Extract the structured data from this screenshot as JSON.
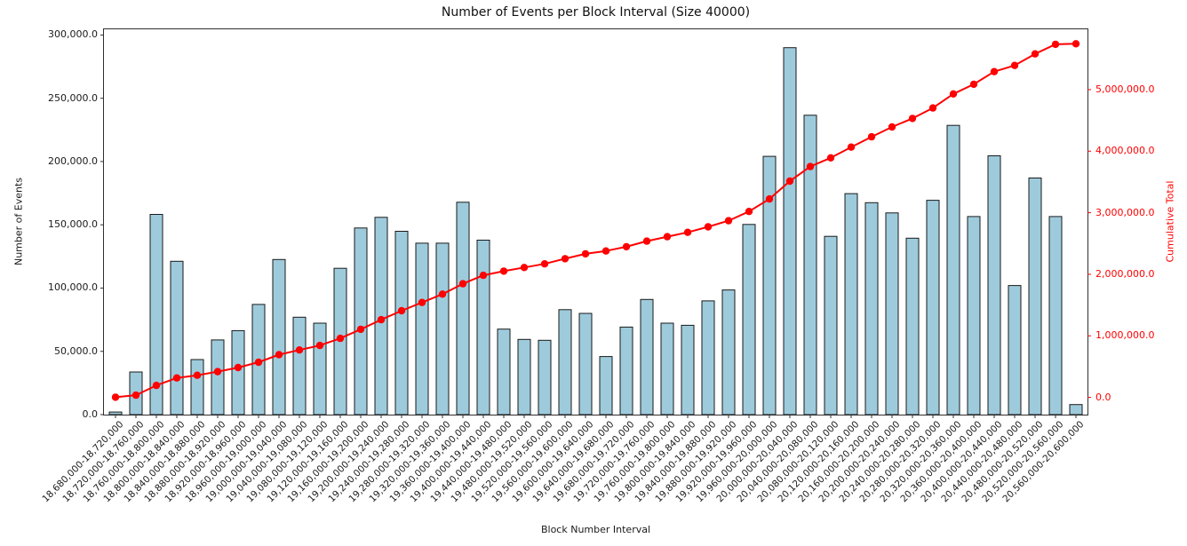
{
  "title": "Number of Events per Block Interval (Size 40000)",
  "x_axis": {
    "label": "Block Number Interval",
    "tick_rotation_deg": 45
  },
  "left_axis": {
    "label": "Number of Events",
    "color": "#1a1a1a",
    "ticks": [
      0,
      50000,
      100000,
      150000,
      200000,
      250000,
      300000
    ],
    "min": 0,
    "max": 304500
  },
  "right_axis": {
    "label": "Cumulative Total",
    "color": "#ff0000",
    "ticks": [
      0,
      1000000,
      2000000,
      3000000,
      4000000,
      5000000
    ],
    "min": -280000,
    "max": 5980000
  },
  "chart_data": {
    "type": "bar",
    "title": "Number of Events per Block Interval (Size 40000)",
    "xlabel": "Block Number Interval",
    "ylabel": "Number of Events",
    "ylabel_right": "Cumulative Total",
    "ylim_left": [
      0,
      304500
    ],
    "ylim_right": [
      -280000,
      5980000
    ],
    "grid": false,
    "legend": "none",
    "categories": [
      "18,680,000-18,720,000",
      "18,720,000-18,760,000",
      "18,760,000-18,800,000",
      "18,800,000-18,840,000",
      "18,840,000-18,880,000",
      "18,880,000-18,920,000",
      "18,920,000-18,960,000",
      "18,960,000-19,000,000",
      "19,000,000-19,040,000",
      "19,040,000-19,080,000",
      "19,080,000-19,120,000",
      "19,120,000-19,160,000",
      "19,160,000-19,200,000",
      "19,200,000-19,240,000",
      "19,240,000-19,280,000",
      "19,280,000-19,320,000",
      "19,320,000-19,360,000",
      "19,360,000-19,400,000",
      "19,400,000-19,440,000",
      "19,440,000-19,480,000",
      "19,480,000-19,520,000",
      "19,520,000-19,560,000",
      "19,560,000-19,600,000",
      "19,600,000-19,640,000",
      "19,640,000-19,680,000",
      "19,680,000-19,720,000",
      "19,720,000-19,760,000",
      "19,760,000-19,800,000",
      "19,800,000-19,840,000",
      "19,840,000-19,880,000",
      "19,880,000-19,920,000",
      "19,920,000-19,960,000",
      "19,960,000-20,000,000",
      "20,000,000-20,040,000",
      "20,040,000-20,080,000",
      "20,080,000-20,120,000",
      "20,120,000-20,160,000",
      "20,160,000-20,200,000",
      "20,200,000-20,240,000",
      "20,240,000-20,280,000",
      "20,280,000-20,320,000",
      "20,320,000-20,360,000",
      "20,360,000-20,400,000",
      "20,400,000-20,440,000",
      "20,440,000-20,480,000",
      "20,480,000-20,520,000",
      "20,520,000-20,560,000",
      "20,560,000-20,600,000"
    ],
    "series": [
      {
        "name": "Number of Events",
        "type": "bar",
        "axis": "left",
        "fill_color": "#9ecbdc",
        "edge_color": "#1a1a1a",
        "values": [
          2000,
          33700,
          158200,
          121200,
          43500,
          59000,
          66400,
          87100,
          122600,
          77000,
          72300,
          115600,
          147500,
          155900,
          144900,
          135500,
          135500,
          167800,
          137900,
          67600,
          59400,
          58700,
          82900,
          80000,
          45900,
          69200,
          91000,
          72300,
          70600,
          89900,
          98500,
          150300,
          204100,
          290000,
          236600,
          140900,
          174600,
          167500,
          159400,
          139400,
          169400,
          228600,
          156500,
          204500,
          102000,
          187000,
          156500,
          7900
        ]
      },
      {
        "name": "Cumulative Total",
        "type": "line",
        "axis": "right",
        "color": "#ff0000",
        "marker": "circle",
        "values": [
          2000,
          35700,
          193900,
          315100,
          358600,
          417600,
          484000,
          571100,
          693700,
          770700,
          843000,
          958600,
          1106100,
          1262000,
          1406900,
          1542400,
          1677900,
          1845700,
          1983600,
          2051200,
          2110600,
          2169300,
          2252200,
          2332200,
          2378100,
          2447300,
          2538300,
          2610600,
          2681200,
          2771100,
          2869600,
          3019900,
          3224000,
          3514000,
          3750600,
          3891500,
          4066100,
          4233600,
          4393000,
          4532400,
          4701800,
          4930400,
          5086900,
          5291400,
          5393400,
          5580400,
          5736900,
          5744800
        ]
      }
    ]
  }
}
